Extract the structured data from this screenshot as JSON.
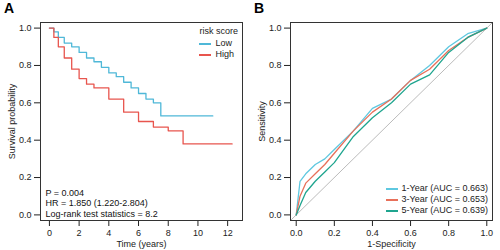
{
  "chart_data": [
    {
      "type": "step",
      "title": "A",
      "x_label": "Time (years)",
      "y_label": "Survival probability",
      "xlim": [
        -0.6,
        13
      ],
      "xticks": [
        0,
        2,
        4,
        6,
        8,
        10,
        12
      ],
      "ylim": [
        -0.03,
        1.03
      ],
      "yticks": [
        {
          "value": 0,
          "label": "0.0"
        },
        {
          "value": 0.2,
          "label": "0.2"
        },
        {
          "value": 0.4,
          "label": "0.4"
        },
        {
          "value": 0.6,
          "label": "0.6"
        },
        {
          "value": 0.8,
          "label": "0.8"
        },
        {
          "value": 1,
          "label": "1.0"
        }
      ],
      "grid": false,
      "legend": "top-right",
      "legend_title": "risk score",
      "annotations": [
        "P = 0.004",
        "HR = 1.850 (1.220-2.804)",
        "Log-rank test statistics = 8.2"
      ],
      "series": [
        {
          "name": "Low",
          "color": "#4fb8d8",
          "x": [
            0,
            0.3,
            0.6,
            1,
            1.5,
            2,
            2.5,
            3,
            3.5,
            4,
            4.5,
            5,
            5.5,
            6,
            6.5,
            7,
            7.5,
            9,
            11
          ],
          "values": [
            1,
            0.98,
            0.95,
            0.92,
            0.9,
            0.87,
            0.84,
            0.82,
            0.79,
            0.76,
            0.74,
            0.71,
            0.68,
            0.65,
            0.62,
            0.6,
            0.53,
            0.53,
            0.53
          ]
        },
        {
          "name": "High",
          "color": "#e8554e",
          "x": [
            0,
            0.3,
            0.6,
            1,
            1.5,
            2,
            2.5,
            3,
            4,
            5,
            6,
            7,
            8,
            9,
            10,
            12.3
          ],
          "values": [
            1,
            0.95,
            0.9,
            0.84,
            0.78,
            0.73,
            0.7,
            0.68,
            0.62,
            0.55,
            0.5,
            0.47,
            0.45,
            0.38,
            0.38,
            0.38
          ]
        }
      ]
    },
    {
      "type": "line",
      "title": "B",
      "x_label": "1-Specificity",
      "y_label": "Sensitivity",
      "xlim": [
        -0.03,
        1.03
      ],
      "xticks": [
        {
          "value": 0,
          "label": "0.0"
        },
        {
          "value": 0.2,
          "label": "0.2"
        },
        {
          "value": 0.4,
          "label": "0.4"
        },
        {
          "value": 0.6,
          "label": "0.6"
        },
        {
          "value": 0.8,
          "label": "0.8"
        },
        {
          "value": 1,
          "label": "1.0"
        }
      ],
      "ylim": [
        -0.03,
        1.03
      ],
      "yticks": [
        {
          "value": 0,
          "label": "0.0"
        },
        {
          "value": 0.2,
          "label": "0.2"
        },
        {
          "value": 0.4,
          "label": "0.4"
        },
        {
          "value": 0.6,
          "label": "0.6"
        },
        {
          "value": 0.8,
          "label": "0.8"
        },
        {
          "value": 1,
          "label": "1.0"
        }
      ],
      "grid": false,
      "legend": "bottom-right",
      "series": [
        {
          "name": "1-Year (AUC = 0.663)",
          "color": "#5ec8e0",
          "x": [
            0,
            0.02,
            0.05,
            0.1,
            0.15,
            0.2,
            0.3,
            0.4,
            0.5,
            0.6,
            0.7,
            0.8,
            0.9,
            1
          ],
          "values": [
            0,
            0.18,
            0.22,
            0.27,
            0.3,
            0.35,
            0.45,
            0.57,
            0.62,
            0.72,
            0.8,
            0.9,
            0.97,
            1
          ]
        },
        {
          "name": "3-Year (AUC = 0.653)",
          "color": "#e8705a",
          "x": [
            0,
            0.02,
            0.05,
            0.1,
            0.15,
            0.2,
            0.3,
            0.4,
            0.5,
            0.6,
            0.7,
            0.8,
            0.9,
            1
          ],
          "values": [
            0,
            0.1,
            0.17,
            0.22,
            0.27,
            0.33,
            0.45,
            0.55,
            0.62,
            0.72,
            0.78,
            0.88,
            0.95,
            1
          ]
        },
        {
          "name": "5-Year (AUC = 0.639)",
          "color": "#1fa58f",
          "x": [
            0,
            0.02,
            0.05,
            0.1,
            0.15,
            0.2,
            0.3,
            0.4,
            0.5,
            0.6,
            0.7,
            0.8,
            0.9,
            1
          ],
          "values": [
            0,
            0.05,
            0.12,
            0.18,
            0.23,
            0.28,
            0.42,
            0.52,
            0.6,
            0.7,
            0.75,
            0.87,
            0.95,
            1
          ]
        }
      ]
    }
  ]
}
